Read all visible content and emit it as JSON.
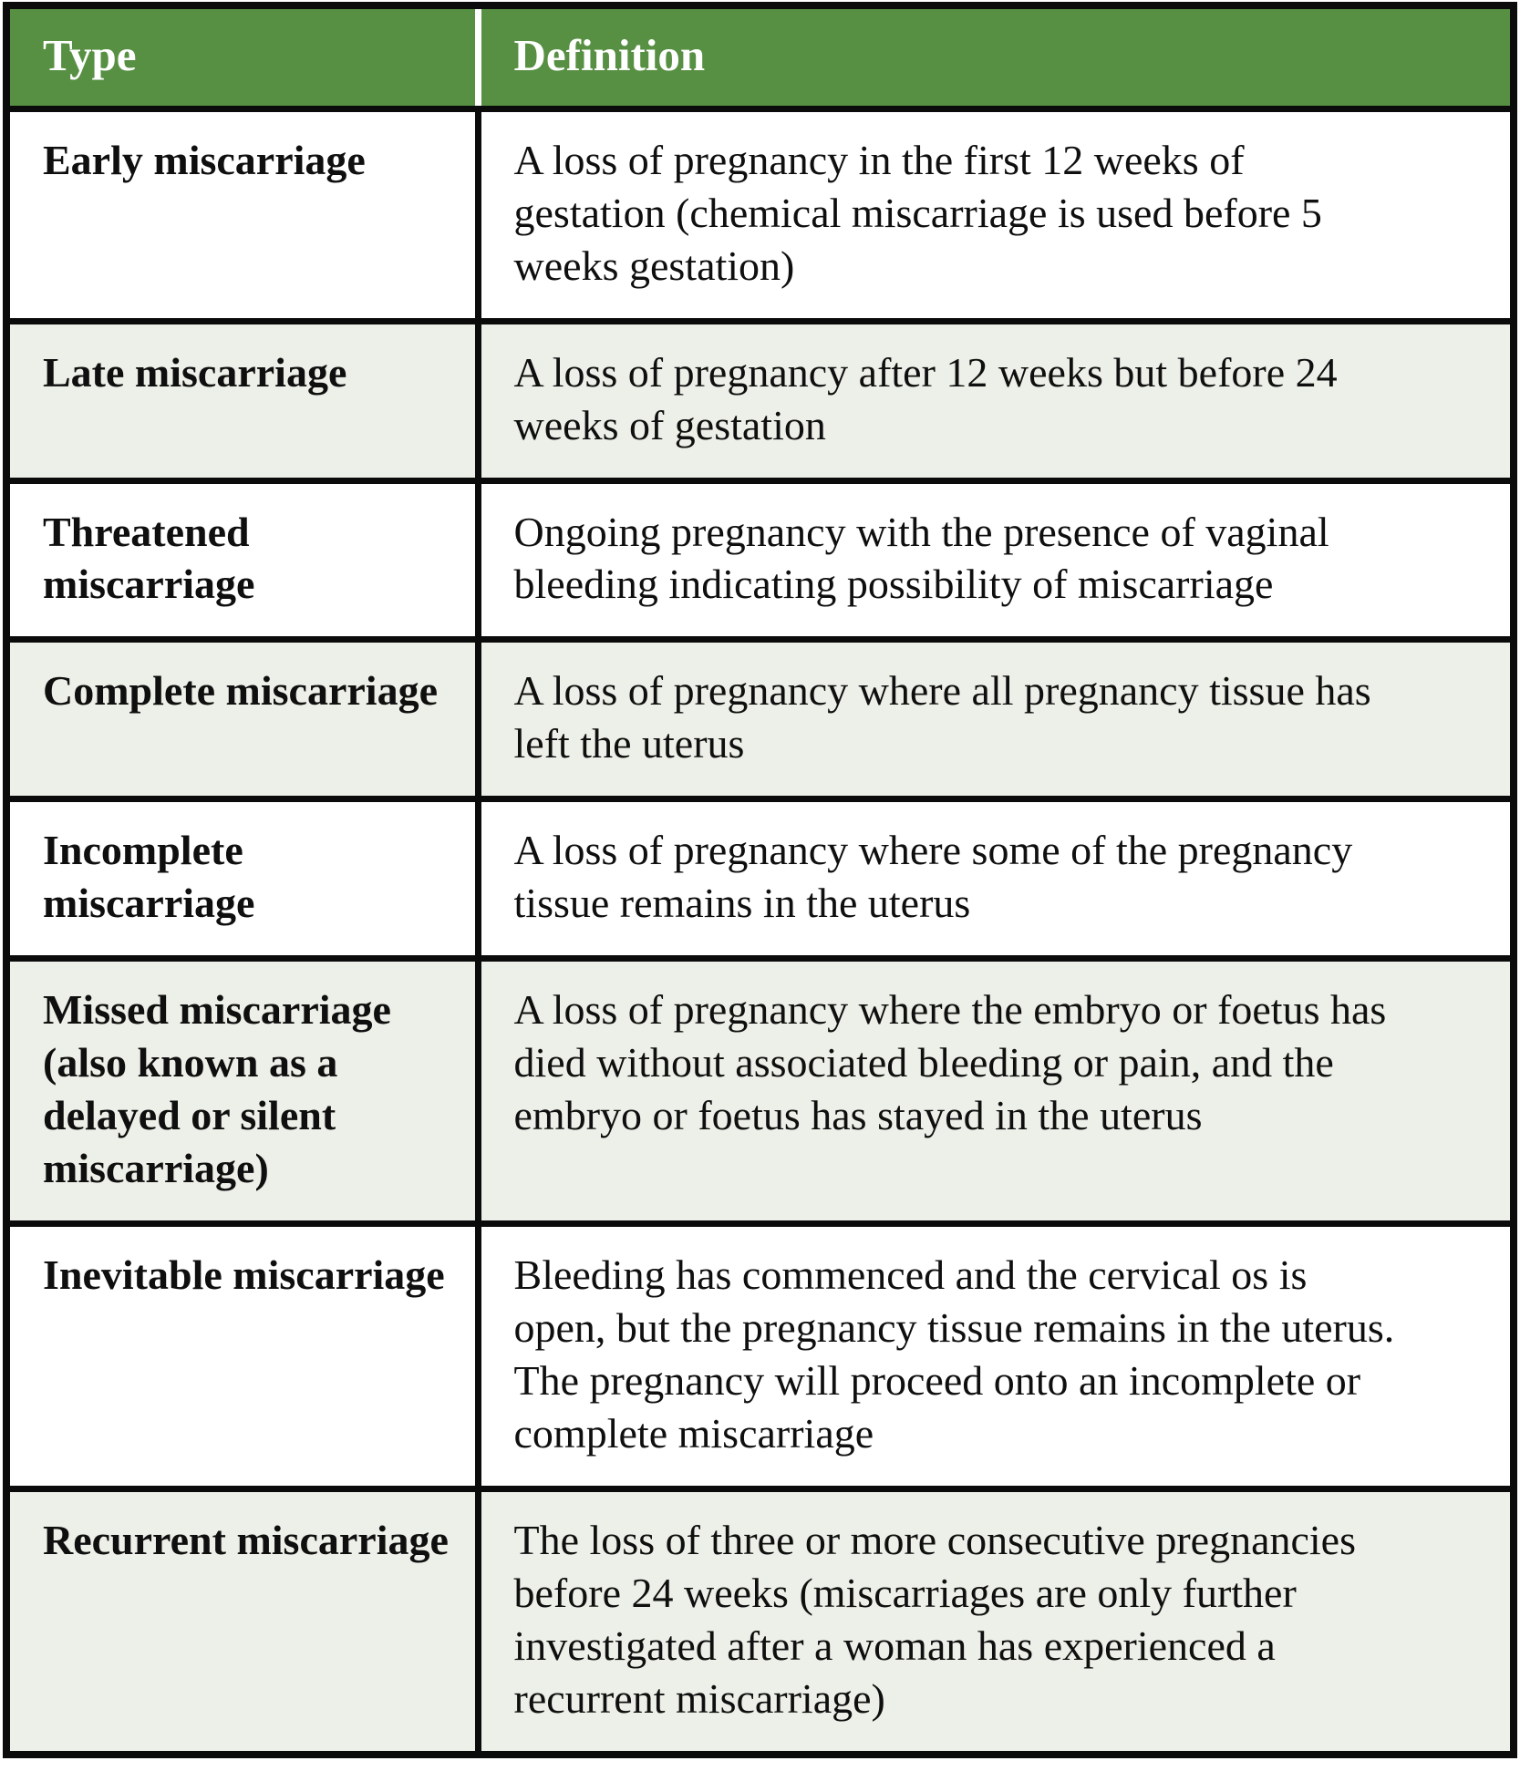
{
  "colors": {
    "header_bg": "#579043",
    "header_text": "#ffffff",
    "row_alt_bg": "#edf0e8",
    "row_bg": "#ffffff",
    "border": "#0b0b0b",
    "body_text": "#0f0f0f"
  },
  "table": {
    "columns": [
      "Type",
      "Definition"
    ],
    "rows": [
      {
        "type": "Early miscarriage",
        "definition": "A loss of pregnancy in the first 12 weeks of gestation (chemical miscarriage is used before 5 weeks gestation)"
      },
      {
        "type": "Late miscarriage",
        "definition": "A loss of pregnancy after 12 weeks but before 24 weeks of gestation"
      },
      {
        "type": "Threatened miscarriage",
        "definition": "Ongoing pregnancy with the presence of vaginal bleeding indicating possibility of miscarriage"
      },
      {
        "type": "Complete miscarriage",
        "definition": "A loss of pregnancy where all pregnancy tissue has left the uterus"
      },
      {
        "type": "Incomplete miscarriage",
        "definition": "A loss of pregnancy where some of the pregnancy tissue remains in the uterus"
      },
      {
        "type": "Missed miscarriage (also known as a delayed or silent miscarriage)",
        "definition": "A loss of pregnancy where the embryo or foetus has died without associated bleeding or pain, and the embryo or foetus has stayed in the uterus"
      },
      {
        "type": "Inevitable miscarriage",
        "definition": "Bleeding has commenced and the cervical os is open, but the pregnancy tissue remains in the uterus. The pregnancy will proceed onto an incomplete or complete miscarriage"
      },
      {
        "type": "Recurrent miscarriage",
        "definition": "The loss of three or more consecutive pregnancies before 24 weeks (miscarriages are only further investigated after a woman has experienced a recurrent miscarriage)"
      }
    ]
  }
}
